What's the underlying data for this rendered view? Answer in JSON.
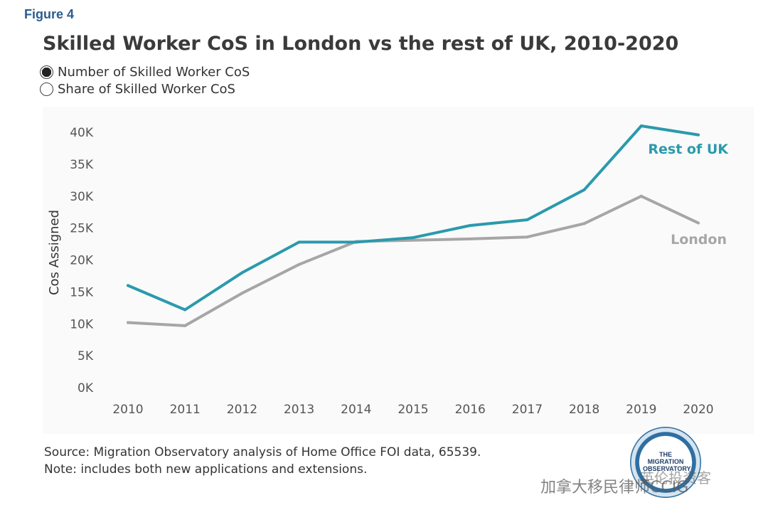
{
  "figure_label": "Figure 4",
  "toggle": {
    "option_number": "Number of Skilled Worker CoS",
    "option_share": "Share of Skilled Worker CoS",
    "selected": "option_number"
  },
  "source_text": "Source: Migration Observatory analysis of Home Office FOI data, 65539.",
  "note_text": "Note: includes both new applications and extensions.",
  "logo": {
    "line1": "THE",
    "line2": "MIGRATION",
    "line3": "OBSERVATORY"
  },
  "watermark_text": "加拿大移民律师CCIG",
  "watermark_text2": "英伦投资客",
  "colors": {
    "rest_of_uk": "#2a9aac",
    "london": "#a6a6a6",
    "title": "#3a3a3a",
    "figure_label": "#2a5d8f"
  },
  "chart_data": {
    "type": "line",
    "title": "Skilled Worker CoS in London vs the rest of UK, 2010-2020",
    "xlabel": "",
    "ylabel": "Cos Assigned",
    "x": [
      "2010",
      "2011",
      "2012",
      "2013",
      "2014",
      "2015",
      "2016",
      "2017",
      "2018",
      "2019",
      "2020"
    ],
    "ylim": [
      0,
      40000
    ],
    "yticks": [
      0,
      5000,
      10000,
      15000,
      20000,
      25000,
      30000,
      35000,
      40000
    ],
    "ytick_labels": [
      "0K",
      "5K",
      "10K",
      "15K",
      "20K",
      "25K",
      "30K",
      "35K",
      "40K"
    ],
    "grid": false,
    "legend": "direct labels at line ends",
    "series": [
      {
        "name": "Rest of UK",
        "values": [
          16000,
          12200,
          18000,
          22800,
          22800,
          23500,
          25400,
          26300,
          31000,
          41000,
          39600
        ]
      },
      {
        "name": "London",
        "values": [
          10200,
          9700,
          14800,
          19300,
          22900,
          23100,
          23300,
          23600,
          25700,
          30000,
          25800
        ]
      }
    ]
  }
}
